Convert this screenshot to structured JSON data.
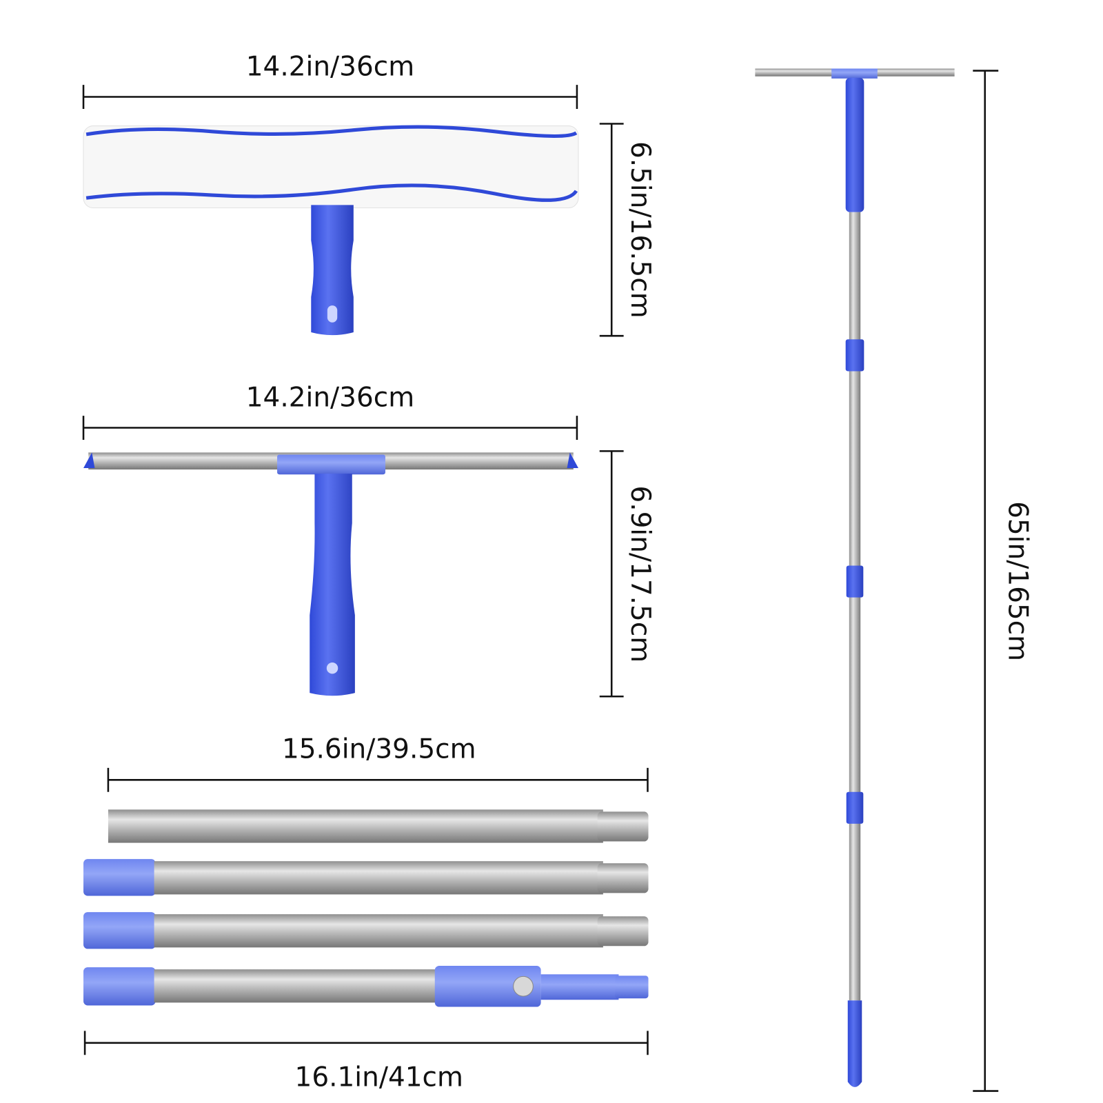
{
  "dimensions": {
    "scrubber_width": "14.2in/36cm",
    "scrubber_height": "6.5in/16.5cm",
    "squeegee_width": "14.2in/36cm",
    "squeegee_height": "6.9in/17.5cm",
    "pole_section_length": "15.6in/39.5cm",
    "pole_end_section_length": "16.1in/41cm",
    "total_length": "65in/165cm"
  }
}
